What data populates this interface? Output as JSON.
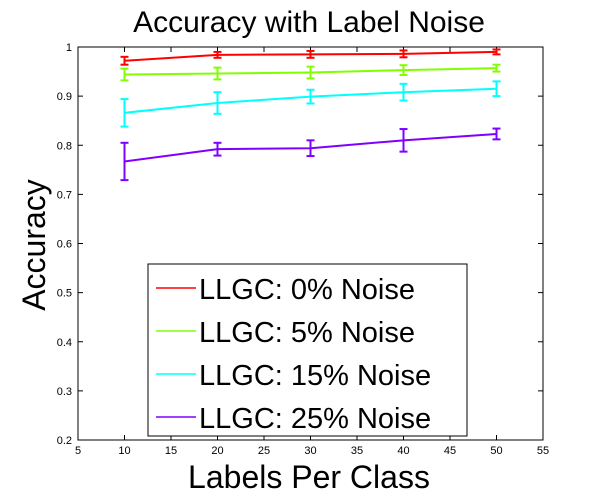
{
  "chart_data": {
    "type": "line",
    "title": "Accuracy with Label Noise",
    "xlabel": "Labels Per Class",
    "ylabel": "Accuracy",
    "xlim": [
      5,
      55
    ],
    "ylim": [
      0.2,
      1
    ],
    "xticks": [
      "5",
      "10",
      "15",
      "20",
      "25",
      "30",
      "35",
      "40",
      "45",
      "50",
      "55"
    ],
    "yticks": [
      "0.2",
      "0.3",
      "0.4",
      "0.5",
      "0.6",
      "0.7",
      "0.8",
      "0.9",
      "1"
    ],
    "grid": false,
    "legend_position": "bottom-center",
    "x": [
      10,
      20,
      30,
      40,
      50
    ],
    "series": [
      {
        "name": "LLGC: 0% Noise",
        "color": "#ff0000",
        "values": [
          0.972,
          0.984,
          0.985,
          0.986,
          0.99
        ],
        "errors": [
          0.008,
          0.006,
          0.007,
          0.007,
          0.005
        ]
      },
      {
        "name": "LLGC: 5% Noise",
        "color": "#80ff00",
        "values": [
          0.944,
          0.946,
          0.948,
          0.953,
          0.957
        ],
        "errors": [
          0.012,
          0.012,
          0.012,
          0.01,
          0.007
        ]
      },
      {
        "name": "LLGC: 15% Noise",
        "color": "#00ffff",
        "values": [
          0.866,
          0.886,
          0.899,
          0.908,
          0.915
        ],
        "errors": [
          0.028,
          0.022,
          0.014,
          0.017,
          0.015
        ]
      },
      {
        "name": "LLGC: 25% Noise",
        "color": "#8000ff",
        "values": [
          0.767,
          0.792,
          0.794,
          0.81,
          0.823
        ],
        "errors": [
          0.038,
          0.013,
          0.016,
          0.023,
          0.011
        ]
      }
    ]
  }
}
